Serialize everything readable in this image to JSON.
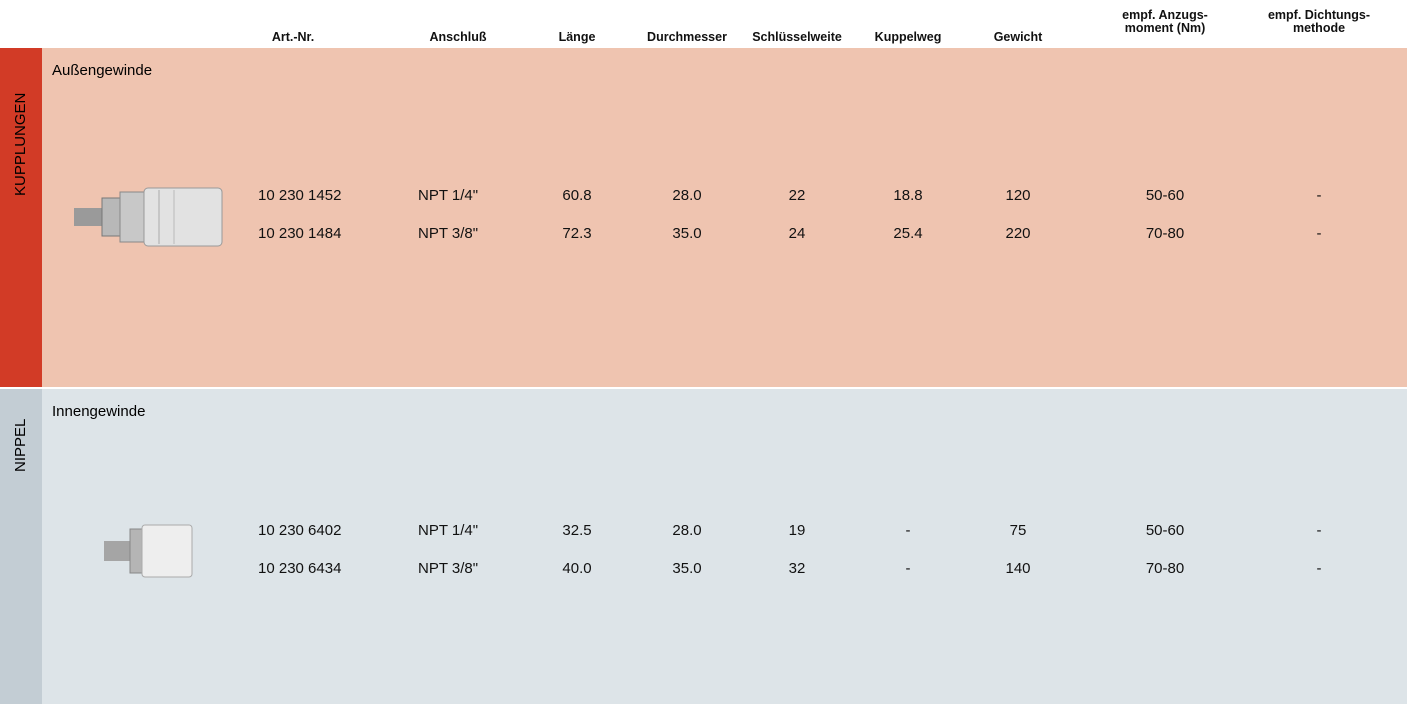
{
  "columns": [
    [
      "Art.-Nr."
    ],
    [
      "Anschluß"
    ],
    [
      "Länge"
    ],
    [
      "Durchmesser"
    ],
    [
      "Schlüsselweite"
    ],
    [
      "Kuppelweg"
    ],
    [
      "Gewicht"
    ],
    [
      "empf. Anzugs-",
      "moment (Nm)"
    ],
    [
      "empf. Dichtungs-",
      "methode"
    ]
  ],
  "sections": [
    {
      "label": "KUPPLUNGEN",
      "title": "Außengewinde",
      "rows": [
        [
          "10 230 1452",
          "NPT 1/4\"",
          "60.8",
          "28.0",
          "22",
          "18.8",
          "120",
          "50-60",
          "-"
        ],
        [
          "10 230 1484",
          "NPT 3/8\"",
          "72.3",
          "35.0",
          "24",
          "25.4",
          "220",
          "70-80",
          "-"
        ]
      ]
    },
    {
      "label": "NIPPEL",
      "title": "Innengewinde",
      "rows": [
        [
          "10 230 6402",
          "NPT 1/4\"",
          "32.5",
          "28.0",
          "19",
          "-",
          "75",
          "50-60",
          "-"
        ],
        [
          "10 230 6434",
          "NPT 3/8\"",
          "40.0",
          "35.0",
          "32",
          "-",
          "140",
          "70-80",
          "-"
        ]
      ]
    }
  ]
}
